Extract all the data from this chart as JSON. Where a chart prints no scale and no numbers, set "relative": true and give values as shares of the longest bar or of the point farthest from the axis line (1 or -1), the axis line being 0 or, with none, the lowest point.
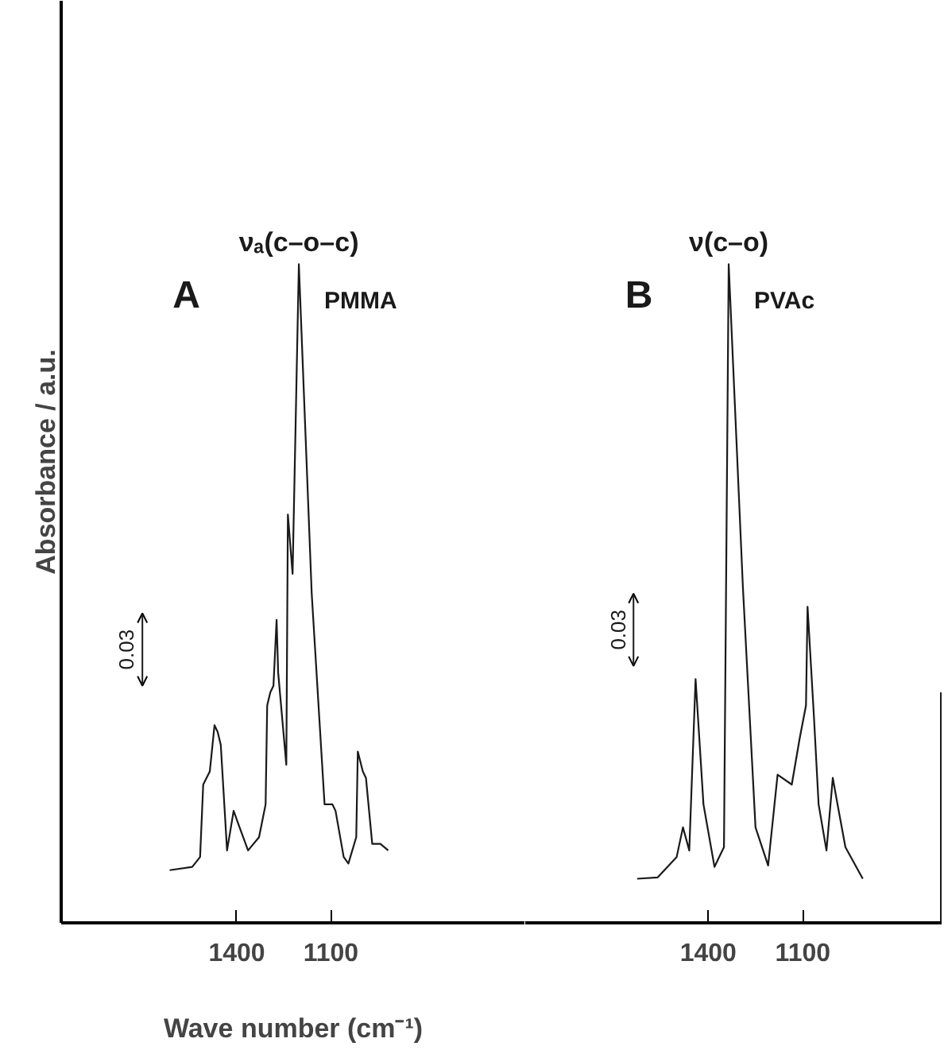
{
  "chart_data": [
    {
      "type": "line",
      "title": "A",
      "ylabel": "Absorbance / a.u.",
      "xlabel": "Wave number (cm⁻¹)",
      "relative": true,
      "xlim": [
        1960,
        480
      ],
      "xticks": [
        1400,
        1100
      ],
      "grid": false,
      "legend": false,
      "marker": "none",
      "line_style": "solid",
      "series": [
        {
          "name": "PMMA",
          "color": "#1a1a1a",
          "x": [
            1614,
            1542,
            1517,
            1507,
            1486,
            1471,
            1461,
            1451,
            1431,
            1410,
            1395,
            1364,
            1329,
            1308,
            1303,
            1293,
            1283,
            1273,
            1268,
            1242,
            1237,
            1222,
            1202,
            1161,
            1120,
            1095,
            1085,
            1059,
            1044,
            1019,
            1014,
            998,
            988,
            968,
            942,
            917
          ],
          "values": [
            0.08,
            0.085,
            0.1,
            0.21,
            0.23,
            0.3,
            0.29,
            0.27,
            0.11,
            0.17,
            0.15,
            0.11,
            0.13,
            0.18,
            0.33,
            0.35,
            0.36,
            0.46,
            0.38,
            0.24,
            0.62,
            0.53,
            1.0,
            0.5,
            0.18,
            0.18,
            0.17,
            0.1,
            0.09,
            0.13,
            0.26,
            0.23,
            0.22,
            0.12,
            0.12,
            0.11
          ]
        }
      ],
      "annotations": [
        {
          "text": "νₐ(c–o–c)",
          "x": 1202,
          "y": 1.0
        },
        "0.03"
      ]
    },
    {
      "type": "line",
      "title": "B",
      "relative": true,
      "xlim": [
        1980,
        660
      ],
      "xticks": [
        1400,
        1100
      ],
      "grid": false,
      "legend": false,
      "marker": "none",
      "line_style": "solid",
      "series": [
        {
          "name": "PVAc",
          "color": "#1a1a1a",
          "x": [
            1625,
            1560,
            1500,
            1480,
            1460,
            1440,
            1415,
            1380,
            1350,
            1335,
            1290,
            1250,
            1210,
            1180,
            1135,
            1110,
            1090,
            1085,
            1065,
            1050,
            1025,
            1005,
            990,
            965,
            910
          ],
          "values": [
            0.067,
            0.069,
            0.1,
            0.145,
            0.11,
            0.37,
            0.18,
            0.085,
            0.115,
            1.0,
            0.51,
            0.145,
            0.087,
            0.225,
            0.21,
            0.28,
            0.33,
            0.48,
            0.315,
            0.18,
            0.11,
            0.22,
            0.18,
            0.115,
            0.067
          ]
        }
      ],
      "annotations": [
        {
          "text": "ν(c–o)",
          "x": 1335,
          "y": 1.0
        },
        "0.03"
      ]
    }
  ]
}
